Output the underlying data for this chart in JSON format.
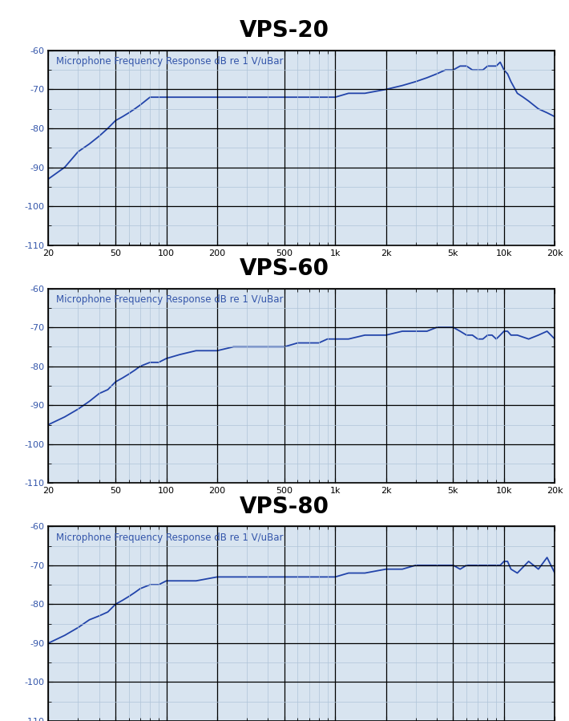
{
  "title_fontsize": 20,
  "title_fontweight": "bold",
  "chart_label_fontsize": 8.5,
  "axis_label_color": "#3355aa",
  "line_color": "#2244aa",
  "line_width": 1.3,
  "plot_bg_color": "#d8e4f0",
  "border_color": "#000000",
  "grid_major_color": "#000000",
  "grid_minor_color": "#afc4d8",
  "grid_major_lw": 0.9,
  "grid_minor_lw": 0.5,
  "ylim": [
    -110,
    -60
  ],
  "yticks": [
    -110,
    -100,
    -90,
    -80,
    -70,
    -60
  ],
  "freq_min": 20,
  "freq_max": 20000,
  "subplot_label": "Microphone Frequency Response dB re 1 V/uBar",
  "titles": [
    "VPS-20",
    "VPS-60",
    "VPS-80"
  ],
  "vps20_freq": [
    20,
    25,
    30,
    35,
    40,
    45,
    50,
    55,
    60,
    65,
    70,
    80,
    90,
    100,
    120,
    150,
    200,
    250,
    300,
    400,
    500,
    600,
    700,
    800,
    900,
    1000,
    1200,
    1500,
    2000,
    2500,
    3000,
    3500,
    4000,
    4500,
    5000,
    5500,
    6000,
    6500,
    7000,
    7500,
    8000,
    8500,
    9000,
    9500,
    10000,
    10500,
    11000,
    12000,
    13000,
    14000,
    16000,
    18000,
    20000
  ],
  "vps20_db": [
    -93,
    -90,
    -86,
    -84,
    -82,
    -80,
    -78,
    -77,
    -76,
    -75,
    -74,
    -72,
    -72,
    -72,
    -72,
    -72,
    -72,
    -72,
    -72,
    -72,
    -72,
    -72,
    -72,
    -72,
    -72,
    -72,
    -71,
    -71,
    -70,
    -69,
    -68,
    -67,
    -66,
    -65,
    -65,
    -64,
    -64,
    -65,
    -65,
    -65,
    -64,
    -64,
    -64,
    -63,
    -65,
    -66,
    -68,
    -71,
    -72,
    -73,
    -75,
    -76,
    -77
  ],
  "vps60_freq": [
    20,
    25,
    30,
    35,
    40,
    45,
    50,
    55,
    60,
    65,
    70,
    80,
    90,
    100,
    120,
    150,
    200,
    250,
    300,
    400,
    500,
    600,
    700,
    800,
    900,
    1000,
    1200,
    1500,
    2000,
    2500,
    3000,
    3500,
    4000,
    4500,
    5000,
    5500,
    6000,
    6500,
    7000,
    7500,
    8000,
    8500,
    9000,
    9500,
    10000,
    10500,
    11000,
    12000,
    14000,
    16000,
    18000,
    20000
  ],
  "vps60_db": [
    -95,
    -93,
    -91,
    -89,
    -87,
    -86,
    -84,
    -83,
    -82,
    -81,
    -80,
    -79,
    -79,
    -78,
    -77,
    -76,
    -76,
    -75,
    -75,
    -75,
    -75,
    -74,
    -74,
    -74,
    -73,
    -73,
    -73,
    -72,
    -72,
    -71,
    -71,
    -71,
    -70,
    -70,
    -70,
    -71,
    -72,
    -72,
    -73,
    -73,
    -72,
    -72,
    -73,
    -72,
    -71,
    -71,
    -72,
    -72,
    -73,
    -72,
    -71,
    -73
  ],
  "vps80_freq": [
    20,
    25,
    30,
    35,
    40,
    45,
    50,
    55,
    60,
    65,
    70,
    80,
    90,
    100,
    120,
    150,
    200,
    250,
    300,
    400,
    500,
    600,
    700,
    800,
    900,
    1000,
    1200,
    1500,
    2000,
    2500,
    3000,
    3500,
    4000,
    4500,
    5000,
    5500,
    6000,
    6500,
    7000,
    7500,
    8000,
    8500,
    9000,
    9500,
    10000,
    10500,
    11000,
    12000,
    14000,
    16000,
    18000,
    20000
  ],
  "vps80_db": [
    -90,
    -88,
    -86,
    -84,
    -83,
    -82,
    -80,
    -79,
    -78,
    -77,
    -76,
    -75,
    -75,
    -74,
    -74,
    -74,
    -73,
    -73,
    -73,
    -73,
    -73,
    -73,
    -73,
    -73,
    -73,
    -73,
    -72,
    -72,
    -71,
    -71,
    -70,
    -70,
    -70,
    -70,
    -70,
    -71,
    -70,
    -70,
    -70,
    -70,
    -70,
    -70,
    -70,
    -70,
    -69,
    -69,
    -71,
    -72,
    -69,
    -71,
    -68,
    -72
  ],
  "xtick_positions": [
    20,
    50,
    100,
    200,
    500,
    1000,
    2000,
    5000,
    10000,
    20000
  ],
  "xtick_labels": [
    "20",
    "50",
    "100",
    "200",
    "500",
    "1k",
    "2k",
    "5k",
    "10k",
    "20k"
  ]
}
